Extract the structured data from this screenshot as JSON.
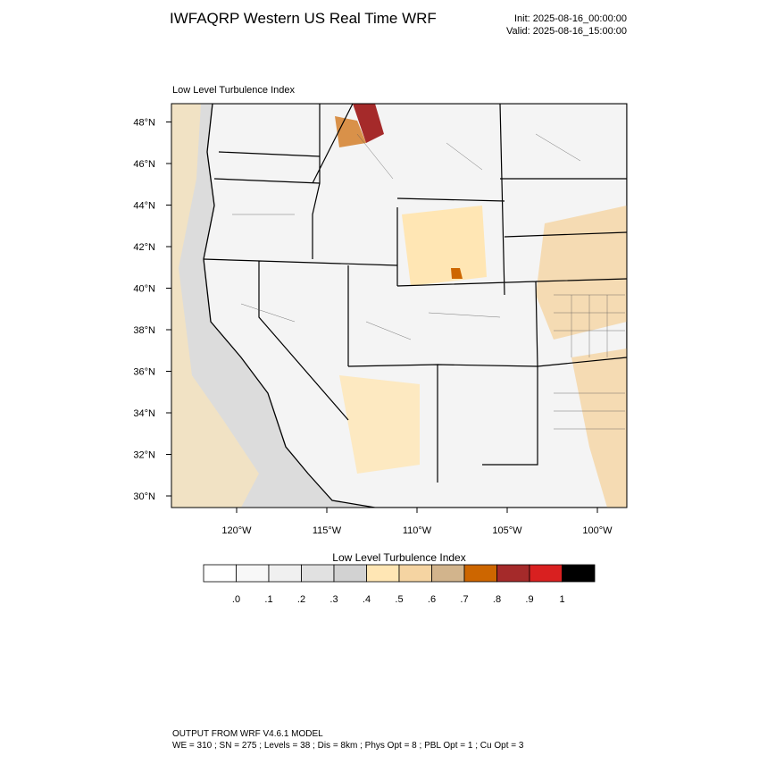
{
  "header": {
    "title": "IWFAQRP Western US Real Time WRF",
    "init": "Init: 2025-08-16_00:00:00",
    "valid": "Valid: 2025-08-16_15:00:00"
  },
  "map": {
    "subtitle": "Low Level Turbulence Index",
    "lat_labels": [
      "30°N",
      "32°N",
      "34°N",
      "36°N",
      "38°N",
      "40°N",
      "42°N",
      "44°N",
      "46°N",
      "48°N"
    ],
    "lon_labels": [
      "120°W",
      "115°W",
      "110°W",
      "105°W",
      "100°W"
    ]
  },
  "colorbar": {
    "title": "Low Level Turbulence Index",
    "colors": [
      "#ffffff",
      "#f8f8f8",
      "#f0f0f0",
      "#e1e1e1",
      "#d2d2d2",
      "#ffe6b4",
      "#f5d4a2",
      "#d2b48c",
      "#cd6600",
      "#a52a2a",
      "#d92020",
      "#000000"
    ],
    "labels": [
      ".0",
      ".1",
      ".2",
      ".3",
      ".4",
      ".5",
      ".6",
      ".7",
      ".8",
      ".9",
      "1"
    ]
  },
  "footer": {
    "line1": "OUTPUT FROM WRF V4.6.1 MODEL",
    "line2": "WE = 310 ; SN = 275 ; Levels = 38 ; Dis = 8km ; Phys Opt = 8 ; PBL Opt = 1 ; Cu Opt = 3"
  }
}
